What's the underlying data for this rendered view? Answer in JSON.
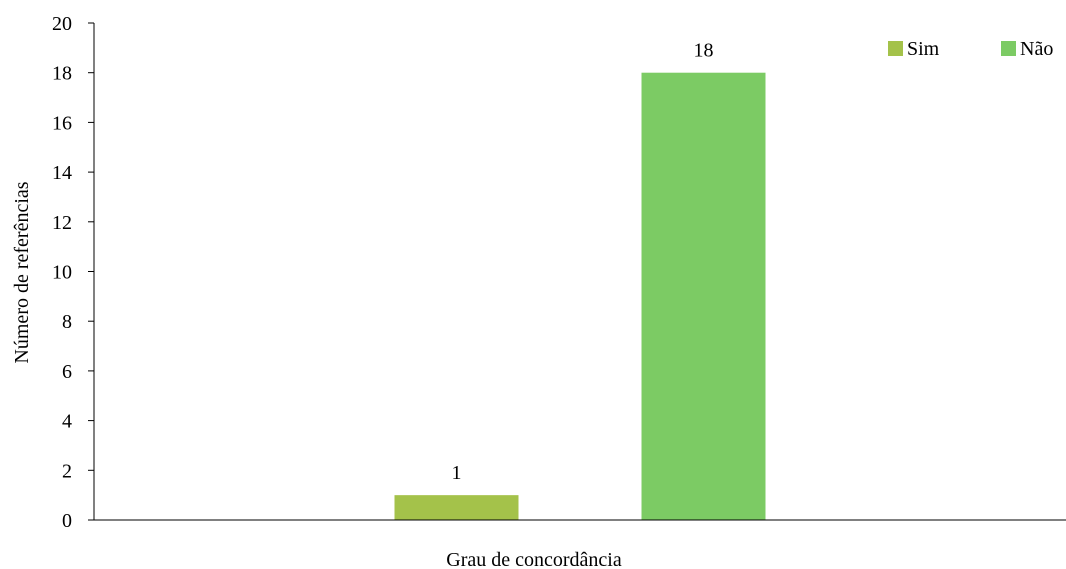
{
  "chart_data": {
    "type": "bar",
    "xlabel": "Grau de concordância",
    "ylabel": "Número de referências",
    "ylim": [
      0,
      20
    ],
    "yticks": [
      0,
      2,
      4,
      6,
      8,
      10,
      12,
      14,
      16,
      18,
      20
    ],
    "grid": false,
    "legend_position": "top-right",
    "series": [
      {
        "name": "Sim",
        "values": [
          1
        ],
        "color": "#a4c24a"
      },
      {
        "name": "Não",
        "values": [
          18
        ],
        "color": "#7ccb64"
      }
    ],
    "data_labels": [
      "1",
      "18"
    ]
  }
}
